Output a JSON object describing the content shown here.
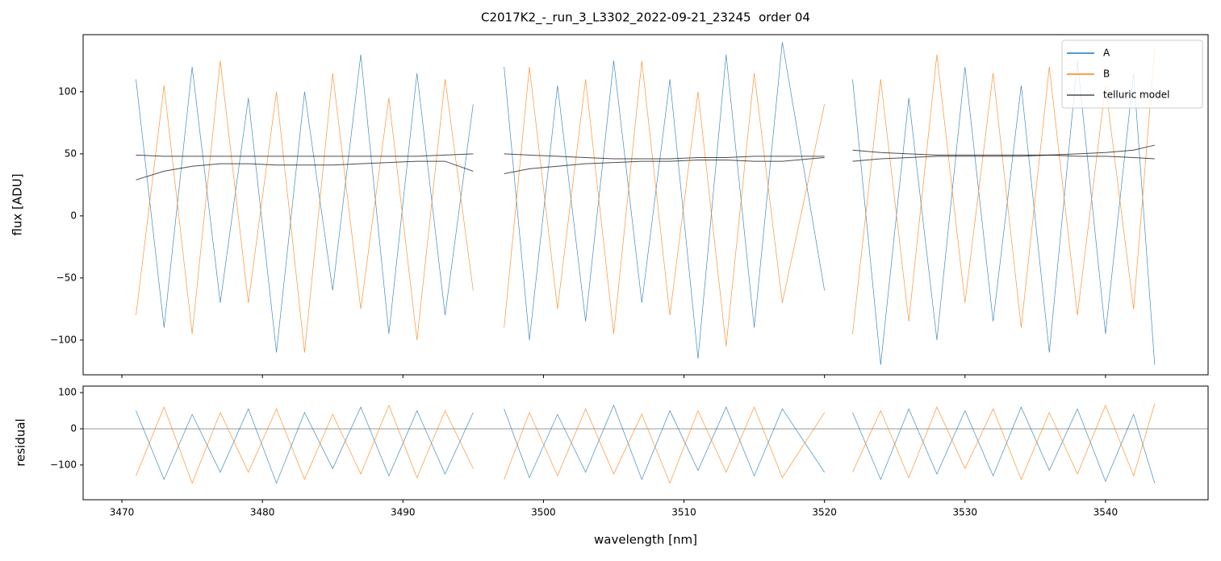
{
  "chart_data": [
    {
      "type": "line",
      "title": "C2017K2_-_run_3_L3302_2022-09-21_23245  order 04",
      "ylabel": "flux [ADU]",
      "x": [
        3471,
        3473,
        3475,
        3477,
        3479,
        3481,
        3483,
        3485,
        3487,
        3489,
        3491,
        3493,
        3495,
        3496,
        3497.2,
        3499,
        3501,
        3503,
        3505,
        3507,
        3509,
        3511,
        3513,
        3515,
        3517,
        3520,
        3521,
        3522,
        3524,
        3526,
        3528,
        3530,
        3532,
        3534,
        3536,
        3538,
        3540,
        3542,
        3543.5
      ],
      "series": [
        {
          "name": "A",
          "color": "#1f77b4",
          "values": [
            110,
            -90,
            120,
            -70,
            95,
            -110,
            100,
            -60,
            130,
            -95,
            115,
            -80,
            90,
            null,
            120,
            -100,
            105,
            -85,
            125,
            -70,
            110,
            -115,
            130,
            -90,
            140,
            -60,
            null,
            110,
            -120,
            95,
            -100,
            120,
            -85,
            105,
            -110,
            125,
            -95,
            115,
            -120
          ]
        },
        {
          "name": "B",
          "color": "#ff7f0e",
          "values": [
            -80,
            105,
            -95,
            125,
            -70,
            100,
            -110,
            115,
            -75,
            95,
            -100,
            110,
            -60,
            null,
            -90,
            120,
            -75,
            110,
            -95,
            125,
            -80,
            100,
            -105,
            115,
            -70,
            90,
            null,
            -95,
            110,
            -85,
            130,
            -70,
            115,
            -90,
            120,
            -80,
            105,
            -75,
            135
          ]
        },
        {
          "name": "telluric model",
          "color": "#000000",
          "values": [
            49,
            48,
            48,
            48,
            48,
            48,
            48,
            48,
            48,
            48,
            48,
            49,
            50,
            null,
            50,
            49,
            48,
            47,
            46,
            46,
            46,
            47,
            47,
            48,
            48,
            48,
            null,
            53,
            51,
            50,
            49,
            49,
            49,
            49,
            49,
            48,
            48,
            47,
            46
          ]
        },
        {
          "color": "#000000",
          "values": [
            29,
            36,
            40,
            42,
            42,
            41,
            41,
            41,
            42,
            43,
            44,
            44,
            36,
            null,
            34,
            38,
            40,
            42,
            43,
            44,
            44,
            45,
            45,
            44,
            44,
            47,
            null,
            44,
            46,
            47,
            48,
            48,
            48,
            48,
            49,
            50,
            51,
            53,
            57
          ]
        }
      ],
      "xlim": [
        3467.24,
        3547.3
      ],
      "xticks": [
        3470,
        3480,
        3490,
        3500,
        3510,
        3520,
        3530,
        3540
      ],
      "show_xtick_labels": false,
      "ylim": [
        -128,
        146
      ],
      "yticks": [
        {
          "value": -100,
          "label": "−100"
        },
        {
          "value": -50,
          "label": "−50"
        },
        0,
        50,
        100
      ],
      "legend": "upper right"
    },
    {
      "type": "line",
      "ylabel": "residual",
      "xlabel": "wavelength [nm]",
      "x": [
        3471,
        3473,
        3475,
        3477,
        3479,
        3481,
        3483,
        3485,
        3487,
        3489,
        3491,
        3493,
        3495,
        3496,
        3497.2,
        3499,
        3501,
        3503,
        3505,
        3507,
        3509,
        3511,
        3513,
        3515,
        3517,
        3520,
        3521,
        3522,
        3524,
        3526,
        3528,
        3530,
        3532,
        3534,
        3536,
        3538,
        3540,
        3542,
        3543.5
      ],
      "series": [
        {
          "color": "#1f77b4",
          "values": [
            50,
            -140,
            40,
            -120,
            55,
            -150,
            45,
            -110,
            60,
            -130,
            50,
            -125,
            45,
            null,
            55,
            -135,
            40,
            -120,
            65,
            -140,
            50,
            -115,
            60,
            -130,
            55,
            -120,
            null,
            45,
            -140,
            55,
            -125,
            50,
            -130,
            60,
            -115,
            55,
            -145,
            40,
            -150
          ]
        },
        {
          "color": "#ff7f0e",
          "values": [
            -130,
            60,
            -150,
            45,
            -120,
            55,
            -140,
            40,
            -125,
            65,
            -135,
            50,
            -110,
            null,
            -140,
            45,
            -130,
            55,
            -125,
            40,
            -150,
            50,
            -120,
            60,
            -135,
            45,
            null,
            -120,
            50,
            -135,
            60,
            -110,
            55,
            -140,
            45,
            -125,
            65,
            -130,
            70
          ]
        }
      ],
      "hline": 0,
      "xlim": [
        3467.24,
        3547.3
      ],
      "xticks": [
        3470,
        3480,
        3490,
        3500,
        3510,
        3520,
        3530,
        3540
      ],
      "show_xtick_labels": true,
      "ylim": [
        -196,
        118
      ],
      "yticks": [
        {
          "value": -100,
          "label": "−100"
        },
        0,
        100
      ]
    }
  ]
}
